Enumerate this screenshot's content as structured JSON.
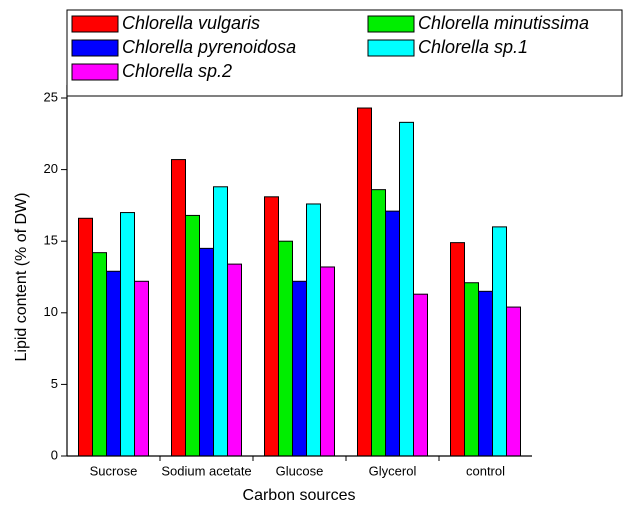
{
  "chart_data": {
    "type": "bar",
    "y_label": "Lipid content (% of DW)",
    "x_label": "Carbon sources",
    "categories": [
      "Sucrose",
      "Sodium acetate",
      "Glucose",
      "Glycerol",
      "control"
    ],
    "series": [
      {
        "name": "Chlorella vulgaris",
        "color": "#ff0000",
        "values": [
          16.6,
          20.7,
          18.1,
          24.3,
          14.9
        ]
      },
      {
        "name": "Chlorella minutissima",
        "color": "#00ee00",
        "values": [
          14.2,
          16.8,
          15.0,
          18.6,
          12.1
        ]
      },
      {
        "name": "Chlorella pyrenoidosa",
        "color": "#0000ff",
        "values": [
          12.9,
          14.5,
          12.2,
          17.1,
          11.5
        ]
      },
      {
        "name": "Chlorella sp.1",
        "color": "#00ffff",
        "values": [
          17.0,
          18.8,
          17.6,
          23.3,
          16.0
        ]
      },
      {
        "name": "Chlorella sp.2",
        "color": "#ff00ff",
        "values": [
          12.2,
          13.4,
          13.2,
          11.3,
          10.4
        ]
      }
    ],
    "ylim": [
      0,
      25
    ],
    "yticks": [
      0,
      5,
      10,
      15,
      20,
      25
    ],
    "legend": "top"
  }
}
